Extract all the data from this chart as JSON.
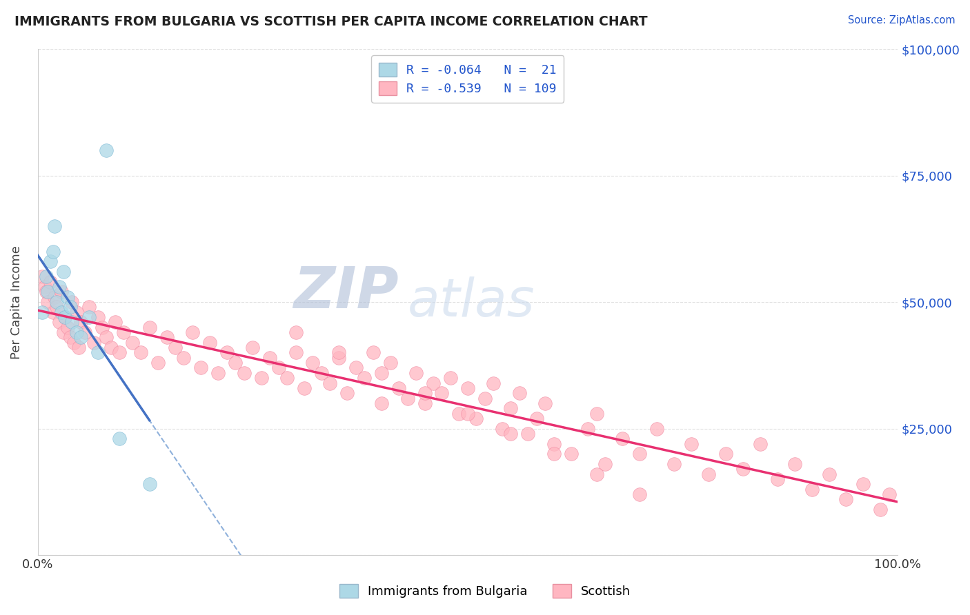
{
  "title": "IMMIGRANTS FROM BULGARIA VS SCOTTISH PER CAPITA INCOME CORRELATION CHART",
  "source": "Source: ZipAtlas.com",
  "ylabel": "Per Capita Income",
  "xlim": [
    0,
    1
  ],
  "ylim": [
    0,
    100000
  ],
  "bg_color": "#ffffff",
  "grid_color": "#e0e0e0",
  "blue_scatter_x": [
    0.005,
    0.01,
    0.012,
    0.015,
    0.018,
    0.02,
    0.022,
    0.025,
    0.028,
    0.03,
    0.032,
    0.035,
    0.038,
    0.04,
    0.045,
    0.05,
    0.06,
    0.07,
    0.08,
    0.095,
    0.13
  ],
  "blue_scatter_y": [
    48000,
    55000,
    52000,
    58000,
    60000,
    65000,
    50000,
    53000,
    48000,
    56000,
    47000,
    51000,
    49000,
    46000,
    44000,
    43000,
    47000,
    40000,
    80000,
    23000,
    14000
  ],
  "pink_scatter_x": [
    0.005,
    0.008,
    0.01,
    0.012,
    0.015,
    0.018,
    0.02,
    0.022,
    0.025,
    0.028,
    0.03,
    0.032,
    0.035,
    0.038,
    0.04,
    0.042,
    0.045,
    0.048,
    0.05,
    0.055,
    0.06,
    0.065,
    0.07,
    0.075,
    0.08,
    0.085,
    0.09,
    0.095,
    0.1,
    0.11,
    0.12,
    0.13,
    0.14,
    0.15,
    0.16,
    0.17,
    0.18,
    0.19,
    0.2,
    0.21,
    0.22,
    0.23,
    0.24,
    0.25,
    0.26,
    0.27,
    0.28,
    0.29,
    0.3,
    0.31,
    0.32,
    0.33,
    0.34,
    0.35,
    0.36,
    0.37,
    0.38,
    0.39,
    0.4,
    0.41,
    0.42,
    0.43,
    0.44,
    0.45,
    0.46,
    0.47,
    0.48,
    0.49,
    0.5,
    0.51,
    0.52,
    0.53,
    0.54,
    0.55,
    0.56,
    0.57,
    0.58,
    0.59,
    0.6,
    0.62,
    0.64,
    0.65,
    0.66,
    0.68,
    0.7,
    0.72,
    0.74,
    0.76,
    0.78,
    0.8,
    0.82,
    0.84,
    0.86,
    0.88,
    0.9,
    0.92,
    0.94,
    0.96,
    0.98,
    0.99,
    0.3,
    0.35,
    0.4,
    0.45,
    0.5,
    0.55,
    0.6,
    0.65,
    0.7
  ],
  "pink_scatter_y": [
    55000,
    53000,
    52000,
    50000,
    54000,
    48000,
    51000,
    49000,
    46000,
    52000,
    44000,
    47000,
    45000,
    43000,
    50000,
    42000,
    48000,
    41000,
    46000,
    44000,
    49000,
    42000,
    47000,
    45000,
    43000,
    41000,
    46000,
    40000,
    44000,
    42000,
    40000,
    45000,
    38000,
    43000,
    41000,
    39000,
    44000,
    37000,
    42000,
    36000,
    40000,
    38000,
    36000,
    41000,
    35000,
    39000,
    37000,
    35000,
    40000,
    33000,
    38000,
    36000,
    34000,
    39000,
    32000,
    37000,
    35000,
    40000,
    30000,
    38000,
    33000,
    31000,
    36000,
    30000,
    34000,
    32000,
    35000,
    28000,
    33000,
    27000,
    31000,
    34000,
    25000,
    29000,
    32000,
    24000,
    27000,
    30000,
    22000,
    20000,
    25000,
    28000,
    18000,
    23000,
    20000,
    25000,
    18000,
    22000,
    16000,
    20000,
    17000,
    22000,
    15000,
    18000,
    13000,
    16000,
    11000,
    14000,
    9000,
    12000,
    44000,
    40000,
    36000,
    32000,
    28000,
    24000,
    20000,
    16000,
    12000
  ],
  "watermark_zip_color": "#b8c8e0",
  "watermark_atlas_color": "#c8d8ec",
  "legend_label_blue": "R = -0.064   N =  21",
  "legend_label_pink": "R = -0.539   N = 109",
  "legend_text_color": "#2255cc",
  "bottom_label_blue": "Immigrants from Bulgaria",
  "bottom_label_pink": "Scottish"
}
